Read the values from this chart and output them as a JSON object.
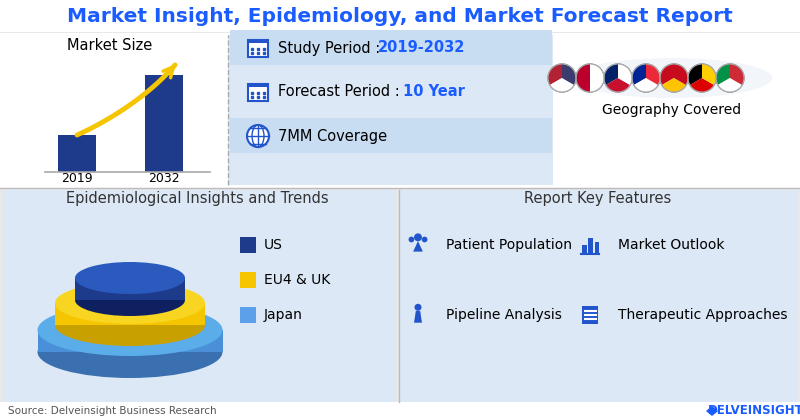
{
  "title": "Market Insight, Epidemiology, and Market Forecast Report",
  "title_color": "#1a5cff",
  "bg_color": "#e8e8e8",
  "top_bg": "#ffffff",
  "panel_bg": "#dce8f5",
  "bottom_left_bg": "#dce8f5",
  "bottom_right_bg": "#dce8f5",
  "market_size_title": "Market Size",
  "bar_color": "#1e3a8a",
  "bar_color2": "#2952b3",
  "arrow_color": "#f5c500",
  "year_start": "2019",
  "year_end": "2032",
  "study_period_label": "Study Period : ",
  "study_period_value": "2019-2032",
  "forecast_label": "Forecast Period : ",
  "forecast_value": "10 Year",
  "coverage_label": "7MM Coverage",
  "geo_label": "Geography Covered",
  "legend_items": [
    "US",
    "EU4 & UK",
    "Japan"
  ],
  "legend_colors": [
    "#1e3a8a",
    "#f5c500",
    "#5ba0e9"
  ],
  "features": [
    "Patient Population",
    "Market Outlook",
    "Pipeline Analysis",
    "Therapeutic Approaches"
  ],
  "epi_title": "Epidemiological Insights and Trends",
  "report_title": "Report Key Features",
  "source_text": "Source: Delveinsight Business Research",
  "brand_text": "DELVEINSIGHT",
  "icon_color": "#2255cc",
  "strip_colors": [
    "#c8ddf0",
    "#dce8f5",
    "#c8ddf0"
  ]
}
